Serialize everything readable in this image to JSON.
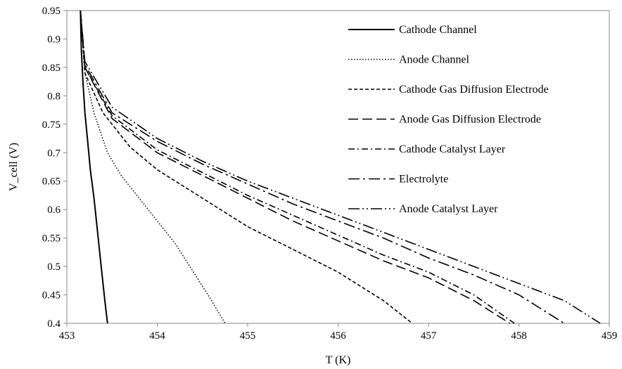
{
  "chart_data": {
    "type": "line",
    "title": "",
    "xlabel": "T (K)",
    "ylabel": "V_cell (V)",
    "xlim": [
      453,
      459
    ],
    "ylim": [
      0.4,
      0.95
    ],
    "x_ticks": [
      "453",
      "454",
      "455",
      "456",
      "457",
      "458",
      "459"
    ],
    "y_ticks": [
      "0.4",
      "0.45",
      "0.5",
      "0.55",
      "0.6",
      "0.65",
      "0.7",
      "0.75",
      "0.8",
      "0.85",
      "0.9",
      "0.95"
    ],
    "grid": false,
    "legend_position": "top-right",
    "series": [
      {
        "name": "Cathode Channel",
        "dash": "solid",
        "points": [
          [
            453.15,
            0.95
          ],
          [
            453.16,
            0.88
          ],
          [
            453.18,
            0.82
          ],
          [
            453.2,
            0.77
          ],
          [
            453.23,
            0.72
          ],
          [
            453.26,
            0.67
          ],
          [
            453.3,
            0.62
          ],
          [
            453.34,
            0.56
          ],
          [
            453.38,
            0.5
          ],
          [
            453.42,
            0.44
          ],
          [
            453.45,
            0.4
          ]
        ]
      },
      {
        "name": "Anode Channel",
        "dash": "dotted",
        "points": [
          [
            453.15,
            0.95
          ],
          [
            453.2,
            0.84
          ],
          [
            453.3,
            0.77
          ],
          [
            453.45,
            0.7
          ],
          [
            453.6,
            0.66
          ],
          [
            453.8,
            0.62
          ],
          [
            454.0,
            0.58
          ],
          [
            454.2,
            0.54
          ],
          [
            454.4,
            0.49
          ],
          [
            454.6,
            0.44
          ],
          [
            454.75,
            0.4
          ]
        ]
      },
      {
        "name": "Cathode Gas Diffusion Electrode",
        "dash": "short-dash",
        "points": [
          [
            453.15,
            0.95
          ],
          [
            453.2,
            0.84
          ],
          [
            453.4,
            0.77
          ],
          [
            453.7,
            0.71
          ],
          [
            454.0,
            0.67
          ],
          [
            454.5,
            0.62
          ],
          [
            455.0,
            0.57
          ],
          [
            455.5,
            0.53
          ],
          [
            456.0,
            0.49
          ],
          [
            456.5,
            0.44
          ],
          [
            456.82,
            0.4
          ]
        ]
      },
      {
        "name": "Anode Gas Diffusion Electrode",
        "dash": "long-dash",
        "points": [
          [
            453.15,
            0.95
          ],
          [
            453.2,
            0.85
          ],
          [
            453.5,
            0.76
          ],
          [
            454.0,
            0.7
          ],
          [
            454.5,
            0.66
          ],
          [
            455.0,
            0.62
          ],
          [
            455.5,
            0.58
          ],
          [
            456.0,
            0.545
          ],
          [
            456.5,
            0.51
          ],
          [
            457.0,
            0.48
          ],
          [
            457.5,
            0.44
          ],
          [
            457.9,
            0.4
          ]
        ]
      },
      {
        "name": "Cathode Catalyst Layer",
        "dash": "dash-dot",
        "points": [
          [
            453.15,
            0.95
          ],
          [
            453.2,
            0.85
          ],
          [
            453.5,
            0.765
          ],
          [
            454.0,
            0.705
          ],
          [
            454.5,
            0.665
          ],
          [
            455.0,
            0.625
          ],
          [
            455.5,
            0.59
          ],
          [
            456.0,
            0.555
          ],
          [
            456.5,
            0.52
          ],
          [
            457.0,
            0.49
          ],
          [
            457.5,
            0.45
          ],
          [
            457.95,
            0.4
          ]
        ]
      },
      {
        "name": "Electrolyte",
        "dash": "long-dash-dot",
        "points": [
          [
            453.15,
            0.95
          ],
          [
            453.2,
            0.855
          ],
          [
            453.5,
            0.77
          ],
          [
            454.0,
            0.72
          ],
          [
            454.5,
            0.68
          ],
          [
            455.0,
            0.645
          ],
          [
            455.5,
            0.61
          ],
          [
            456.0,
            0.58
          ],
          [
            456.5,
            0.55
          ],
          [
            457.0,
            0.515
          ],
          [
            457.5,
            0.485
          ],
          [
            458.0,
            0.45
          ],
          [
            458.5,
            0.4
          ]
        ]
      },
      {
        "name": "Anode Catalyst Layer",
        "dash": "long-dash-dot-dot",
        "points": [
          [
            453.15,
            0.95
          ],
          [
            453.2,
            0.86
          ],
          [
            453.5,
            0.78
          ],
          [
            454.0,
            0.725
          ],
          [
            454.5,
            0.685
          ],
          [
            455.0,
            0.65
          ],
          [
            455.5,
            0.62
          ],
          [
            456.0,
            0.59
          ],
          [
            456.5,
            0.56
          ],
          [
            457.0,
            0.53
          ],
          [
            457.5,
            0.5
          ],
          [
            458.0,
            0.47
          ],
          [
            458.5,
            0.44
          ],
          [
            458.9,
            0.4
          ]
        ]
      }
    ]
  }
}
